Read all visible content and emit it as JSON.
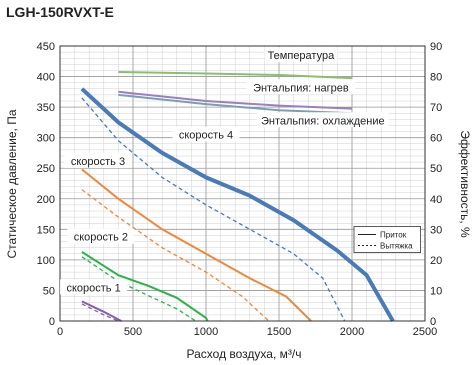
{
  "chart_data": {
    "type": "line",
    "title": "LGH-150RVXT-E",
    "xlabel": "Расход воздуха, м³/ч",
    "ylabel": "Статическое давление, Па",
    "y2label": "Эффективность, %",
    "xlim": [
      0,
      2500
    ],
    "ylim": [
      0,
      450
    ],
    "y2lim": [
      0,
      90
    ],
    "xticks": [
      0,
      500,
      1000,
      1500,
      2000,
      2500
    ],
    "yticks": [
      0,
      50,
      100,
      150,
      200,
      250,
      300,
      350,
      400,
      450
    ],
    "y2ticks": [
      0,
      10,
      20,
      30,
      40,
      50,
      60,
      70,
      80,
      90
    ],
    "grid": true,
    "legend": {
      "placement": "right",
      "entries": [
        {
          "name": "Приток",
          "style": "solid"
        },
        {
          "name": "Вытяжка",
          "style": "dashed"
        }
      ]
    },
    "pressure_series": [
      {
        "label": "скорость 4",
        "color": "#4a7ab8",
        "kind": "supply",
        "points": [
          [
            150,
            380
          ],
          [
            400,
            325
          ],
          [
            700,
            275
          ],
          [
            1000,
            235
          ],
          [
            1300,
            205
          ],
          [
            1600,
            165
          ],
          [
            1900,
            115
          ],
          [
            2100,
            75
          ],
          [
            2280,
            0
          ]
        ]
      },
      {
        "label": "",
        "color": "#4a7ab8",
        "kind": "exhaust",
        "points": [
          [
            150,
            365
          ],
          [
            400,
            295
          ],
          [
            700,
            235
          ],
          [
            1000,
            190
          ],
          [
            1300,
            150
          ],
          [
            1600,
            110
          ],
          [
            1800,
            70
          ],
          [
            1950,
            0
          ]
        ]
      },
      {
        "label": "скорость 3",
        "color": "#f0873a",
        "kind": "supply",
        "points": [
          [
            150,
            248
          ],
          [
            400,
            200
          ],
          [
            700,
            150
          ],
          [
            1000,
            110
          ],
          [
            1300,
            70
          ],
          [
            1550,
            40
          ],
          [
            1720,
            0
          ]
        ]
      },
      {
        "label": "",
        "color": "#f0873a",
        "kind": "exhaust",
        "points": [
          [
            150,
            215
          ],
          [
            400,
            170
          ],
          [
            700,
            120
          ],
          [
            1000,
            80
          ],
          [
            1250,
            40
          ],
          [
            1430,
            0
          ]
        ]
      },
      {
        "label": "скорость 2",
        "color": "#2bb34a",
        "kind": "supply",
        "points": [
          [
            150,
            113
          ],
          [
            400,
            75
          ],
          [
            600,
            58
          ],
          [
            800,
            38
          ],
          [
            1000,
            5
          ],
          [
            1010,
            0
          ]
        ]
      },
      {
        "label": "",
        "color": "#2bb34a",
        "kind": "exhaust",
        "points": [
          [
            150,
            105
          ],
          [
            400,
            65
          ],
          [
            600,
            42
          ],
          [
            800,
            20
          ],
          [
            930,
            0
          ]
        ]
      },
      {
        "label": "скорость 1",
        "color": "#8a5cb0",
        "kind": "supply",
        "points": [
          [
            150,
            32
          ],
          [
            300,
            15
          ],
          [
            420,
            0
          ]
        ]
      },
      {
        "label": "",
        "color": "#8a5cb0",
        "kind": "exhaust",
        "points": [
          [
            150,
            28
          ],
          [
            300,
            10
          ],
          [
            400,
            0
          ]
        ]
      }
    ],
    "efficiency_series": [
      {
        "label": "Температура",
        "color": "#8bbf6e",
        "points": [
          [
            400,
            81.5
          ],
          [
            1000,
            81
          ],
          [
            1500,
            80.5
          ],
          [
            2000,
            79.5
          ]
        ]
      },
      {
        "label": "Энтальпия: нагрев",
        "color": "#9b7fc0",
        "points": [
          [
            400,
            75
          ],
          [
            1000,
            72
          ],
          [
            1500,
            70.5
          ],
          [
            2000,
            69.5
          ]
        ]
      },
      {
        "label": "Энтальпия: охлаждение",
        "color": "#7a9fb5",
        "points": [
          [
            400,
            74
          ],
          [
            1000,
            71
          ],
          [
            1500,
            69
          ],
          [
            2000,
            68
          ]
        ]
      }
    ]
  }
}
